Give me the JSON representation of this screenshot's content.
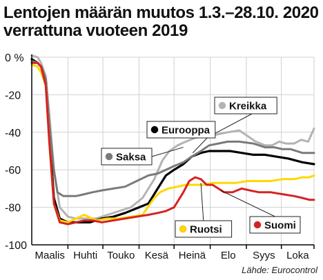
{
  "title_line1": "Lentojen määrän muutos 1.3.–28.10. 2020",
  "title_line2": "verrattuna vuoteen 2019",
  "source": "Lähde: Eurocontrol",
  "colors": {
    "Kreikka": "#b3b3b3",
    "Eurooppa": "#000000",
    "Saksa": "#7a7a7a",
    "Ruotsi": "#ffd700",
    "Suomi": "#d62222",
    "grid": "#d0d0d0",
    "axis": "#000000"
  },
  "chart_data": {
    "type": "line",
    "title": "Lentojen määrän muutos 1.3.–28.10. 2020 verrattuna vuoteen 2019",
    "xlabel": "",
    "ylabel": "",
    "ylim": [
      -100,
      0
    ],
    "yticks": [
      0,
      -20,
      -40,
      -60,
      -80,
      -100
    ],
    "ytick_labels": [
      "0 %",
      "-20",
      "-40",
      "-60",
      "-80",
      "-100"
    ],
    "xlim": [
      0,
      242
    ],
    "months": [
      "Maalis",
      "Huhti",
      "Touko",
      "Kesä",
      "Heinä",
      "Elo",
      "Syys",
      "Loka"
    ],
    "month_boundaries": [
      0,
      31,
      61,
      92,
      122,
      153,
      184,
      214,
      242
    ],
    "x_unit": "days since 1.3.2020",
    "grid": true,
    "series": [
      {
        "name": "Kreikka",
        "x": [
          0,
          5,
          8,
          12,
          15,
          19,
          24,
          31,
          38,
          45,
          55,
          65,
          75,
          85,
          95,
          105,
          112,
          118,
          125,
          132,
          140,
          147,
          153,
          160,
          168,
          178,
          185,
          192,
          200,
          206,
          212,
          218,
          225,
          231,
          237,
          242
        ],
        "y": [
          1,
          0,
          -3,
          -10,
          -30,
          -60,
          -80,
          -85,
          -86,
          -86,
          -86,
          -84,
          -82,
          -80,
          -75,
          -65,
          -55,
          -50,
          -47,
          -45,
          -43,
          -42,
          -42,
          -41,
          -40,
          -39,
          -42,
          -45,
          -47,
          -47,
          -45,
          -46,
          -46,
          -44,
          -45,
          -38
        ]
      },
      {
        "name": "Eurooppa",
        "x": [
          0,
          5,
          8,
          12,
          15,
          19,
          24,
          31,
          40,
          50,
          60,
          70,
          80,
          92,
          100,
          108,
          115,
          122,
          130,
          137,
          145,
          152,
          160,
          170,
          180,
          190,
          200,
          210,
          220,
          232,
          242
        ],
        "y": [
          -1,
          -3,
          -5,
          -12,
          -40,
          -75,
          -86,
          -88,
          -88,
          -88,
          -86,
          -85,
          -83,
          -80,
          -78,
          -70,
          -63,
          -60,
          -57,
          -53,
          -51,
          -50,
          -50,
          -50,
          -51,
          -52,
          -52,
          -53,
          -54,
          -56,
          -57
        ]
      },
      {
        "name": "Saksa",
        "x": [
          0,
          5,
          8,
          12,
          15,
          19,
          22,
          27,
          31,
          38,
          45,
          52,
          60,
          70,
          80,
          90,
          100,
          108,
          115,
          122,
          130,
          137,
          145,
          152,
          160,
          168,
          178,
          190,
          200,
          208,
          215,
          222,
          232,
          242
        ],
        "y": [
          -2,
          -3,
          -5,
          -12,
          -35,
          -60,
          -72,
          -74,
          -74,
          -74,
          -73,
          -72,
          -71,
          -70,
          -69,
          -66,
          -63,
          -62,
          -60,
          -58,
          -56,
          -53,
          -50,
          -47,
          -46,
          -45,
          -45,
          -46,
          -48,
          -48,
          -49,
          -49,
          -51,
          -51
        ]
      },
      {
        "name": "Ruotsi",
        "x": [
          0,
          5,
          8,
          12,
          15,
          19,
          24,
          31,
          38,
          45,
          55,
          65,
          75,
          85,
          95,
          105,
          110,
          117,
          125,
          132,
          140,
          148,
          155,
          165,
          175,
          185,
          195,
          205,
          215,
          225,
          232,
          238,
          242
        ],
        "y": [
          -4,
          -5,
          -8,
          -15,
          -45,
          -78,
          -87,
          -88,
          -86,
          -84,
          -87,
          -86,
          -86,
          -85,
          -84,
          -75,
          -72,
          -70,
          -69,
          -68,
          -68,
          -68,
          -67,
          -67,
          -67,
          -66,
          -66,
          -66,
          -65,
          -65,
          -64,
          -64,
          -63
        ]
      },
      {
        "name": "Suomi",
        "x": [
          0,
          5,
          8,
          12,
          15,
          19,
          24,
          31,
          38,
          45,
          52,
          60,
          70,
          80,
          90,
          100,
          108,
          115,
          122,
          130,
          135,
          140,
          145,
          150,
          155,
          160,
          165,
          172,
          180,
          187,
          195,
          205,
          215,
          225,
          232,
          238,
          242
        ],
        "y": [
          -3,
          -3,
          -5,
          -15,
          -45,
          -78,
          -88,
          -89,
          -88,
          -87,
          -87,
          -88,
          -87,
          -86,
          -85,
          -84,
          -83,
          -82,
          -80,
          -72,
          -66,
          -64,
          -65,
          -68,
          -68,
          -70,
          -72,
          -72,
          -70,
          -71,
          -72,
          -72,
          -73,
          -74,
          -75,
          -76,
          -76
        ]
      }
    ],
    "labels": [
      {
        "series": "Kreikka",
        "text": "Kreikka"
      },
      {
        "series": "Eurooppa",
        "text": "Eurooppa"
      },
      {
        "series": "Saksa",
        "text": "Saksa"
      },
      {
        "series": "Ruotsi",
        "text": "Ruotsi"
      },
      {
        "series": "Suomi",
        "text": "Suomi"
      }
    ]
  }
}
